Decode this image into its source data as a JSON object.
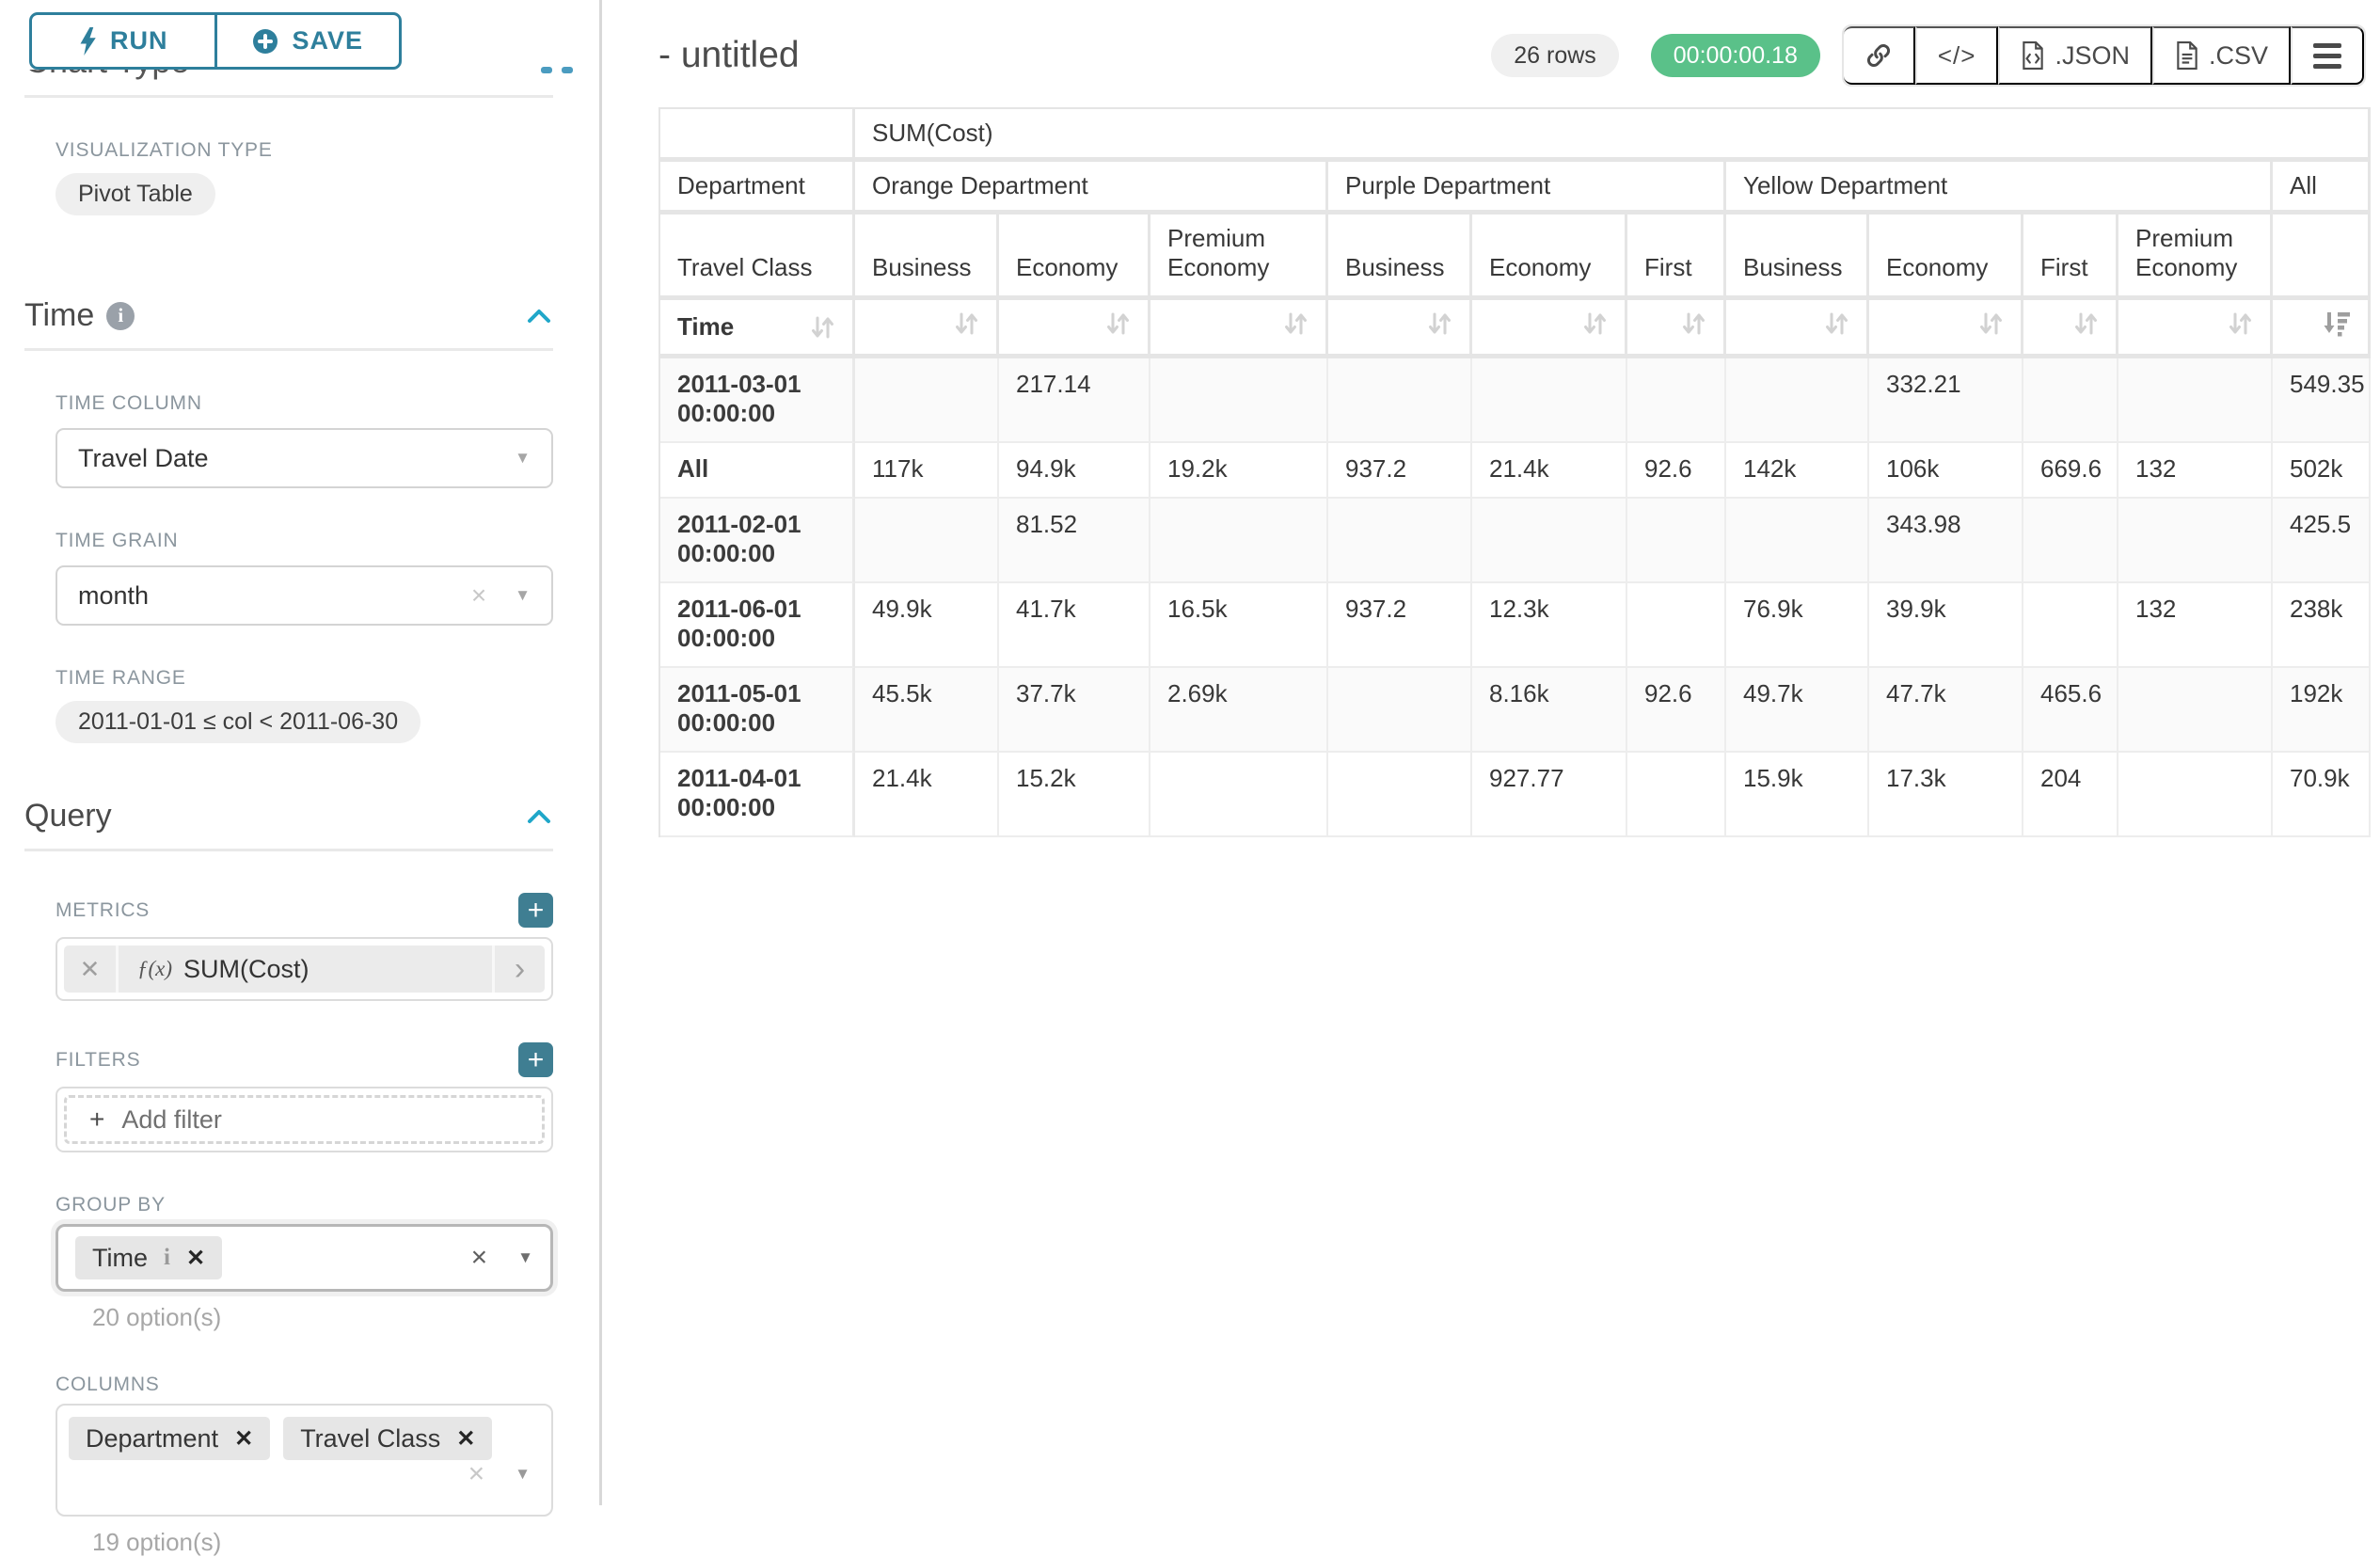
{
  "colors": {
    "accent_teal": "#2e7f9c",
    "plus_button_teal": "#3f7e92",
    "chevron_blue": "#20a7c9",
    "timer_green": "#5ac189"
  },
  "toolbar": {
    "run_label": "RUN",
    "save_label": "SAVE"
  },
  "sidebar": {
    "chart_type_title": "Chart Type",
    "visualization_type_label": "VISUALIZATION TYPE",
    "visualization_type_value": "Pivot Table",
    "time": {
      "title": "Time",
      "time_column_label": "TIME COLUMN",
      "time_column_value": "Travel Date",
      "time_grain_label": "TIME GRAIN",
      "time_grain_value": "month",
      "time_range_label": "TIME RANGE",
      "time_range_value": "2011-01-01 ≤ col < 2011-06-30"
    },
    "query": {
      "title": "Query",
      "metrics_label": "METRICS",
      "metric_prefix": "ƒ(x)",
      "metric_value": "SUM(Cost)",
      "filters_label": "FILTERS",
      "add_filter_label": "Add filter",
      "group_by_label": "GROUP BY",
      "group_by_tags": [
        {
          "label": "Time",
          "has_info": true
        }
      ],
      "group_by_count": "20 option(s)",
      "columns_label": "COLUMNS",
      "columns_tags": [
        {
          "label": "Department",
          "has_info": false
        },
        {
          "label": "Travel Class",
          "has_info": false
        }
      ],
      "columns_count": "19 option(s)"
    }
  },
  "main": {
    "title": "- untitled",
    "rows_badge": "26 rows",
    "timer_badge": "00:00:00.18",
    "export_json_label": ".JSON",
    "export_csv_label": ".CSV",
    "pivot_table": {
      "metric_header": "SUM(Cost)",
      "row_dim_label": "Department",
      "col_dim_label": "Travel Class",
      "time_label": "Time",
      "groups": [
        {
          "name": "Orange Department",
          "classes": [
            "Business",
            "Economy",
            "Premium Economy"
          ]
        },
        {
          "name": "Purple Department",
          "classes": [
            "Business",
            "Economy",
            "First"
          ]
        },
        {
          "name": "Yellow Department",
          "classes": [
            "Business",
            "Economy",
            "First",
            "Premium Economy"
          ]
        },
        {
          "name": "All",
          "classes": [
            ""
          ]
        }
      ],
      "rows": [
        {
          "label": "2011-03-01 00:00:00",
          "values": [
            "",
            "217.14",
            "",
            "",
            "",
            "",
            "",
            "332.21",
            "",
            "",
            "549.35"
          ]
        },
        {
          "label": "All",
          "values": [
            "117k",
            "94.9k",
            "19.2k",
            "937.2",
            "21.4k",
            "92.6",
            "142k",
            "106k",
            "669.6",
            "132",
            "502k"
          ]
        },
        {
          "label": "2011-02-01 00:00:00",
          "values": [
            "",
            "81.52",
            "",
            "",
            "",
            "",
            "",
            "343.98",
            "",
            "",
            "425.5"
          ]
        },
        {
          "label": "2011-06-01 00:00:00",
          "values": [
            "49.9k",
            "41.7k",
            "16.5k",
            "937.2",
            "12.3k",
            "",
            "76.9k",
            "39.9k",
            "",
            "132",
            "238k"
          ]
        },
        {
          "label": "2011-05-01 00:00:00",
          "values": [
            "45.5k",
            "37.7k",
            "2.69k",
            "",
            "8.16k",
            "92.6",
            "49.7k",
            "47.7k",
            "465.6",
            "",
            "192k"
          ]
        },
        {
          "label": "2011-04-01 00:00:00",
          "values": [
            "21.4k",
            "15.2k",
            "",
            "",
            "927.77",
            "",
            "15.9k",
            "17.3k",
            "204",
            "",
            "70.9k"
          ]
        }
      ]
    }
  }
}
